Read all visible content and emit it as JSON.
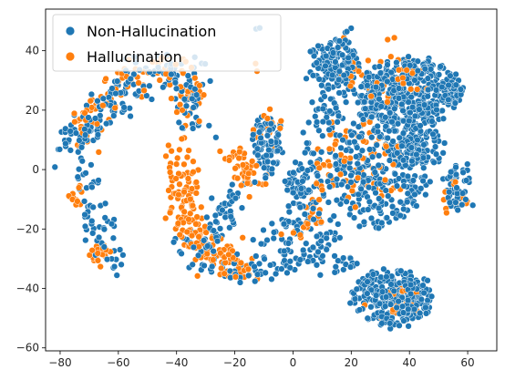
{
  "chart_data": {
    "type": "scatter",
    "title": "",
    "xlabel": "",
    "ylabel": "",
    "xlim": [
      -85,
      70
    ],
    "ylim": [
      -61,
      54
    ],
    "xticks": [
      -80,
      -60,
      -40,
      -20,
      0,
      20,
      40,
      60
    ],
    "yticks": [
      -60,
      -40,
      -20,
      0,
      20,
      40
    ],
    "grid": false,
    "legend": {
      "placement": "upper-left"
    },
    "series": [
      {
        "name": "Non-Hallucination",
        "color": "#1f77b4",
        "clusters": [
          {
            "shape": "arc",
            "points": [
              [
                -78,
                6
              ],
              [
                -75,
                9
              ],
              [
                -71,
                14
              ],
              [
                -66,
                18
              ],
              [
                -62,
                23
              ],
              [
                -58,
                28
              ],
              [
                -53,
                31
              ],
              [
                -47,
                32
              ],
              [
                -41,
                32
              ],
              [
                -35,
                28
              ],
              [
                -34,
                15
              ]
            ],
            "count": 180,
            "spread": 3.2
          },
          {
            "shape": "arc",
            "points": [
              [
                -72,
                2
              ],
              [
                -71,
                -8
              ],
              [
                -69,
                -16
              ],
              [
                -65,
                -20
              ],
              [
                -64,
                -28
              ],
              [
                -59,
                -32
              ]
            ],
            "count": 60,
            "spread": 2.4
          },
          {
            "shape": "arc",
            "points": [
              [
                -38,
                -22
              ],
              [
                -33,
                -29
              ],
              [
                -26,
                -32
              ],
              [
                -20,
                -34
              ],
              [
                -12,
                -34
              ],
              [
                -4,
                -32
              ],
              [
                2,
                -31
              ],
              [
                8,
                -29
              ],
              [
                12,
                -25
              ],
              [
                14,
                -19
              ]
            ],
            "count": 120,
            "spread": 2.4
          },
          {
            "shape": "arc",
            "points": [
              [
                -31,
                -26
              ],
              [
                -26,
                -20
              ],
              [
                -22,
                -12
              ],
              [
                -19,
                -6
              ]
            ],
            "count": 50,
            "spread": 2.4
          },
          {
            "shape": "arc",
            "points": [
              [
                -12,
                -22
              ],
              [
                -8,
                -24
              ],
              [
                -3,
                -22
              ],
              [
                2,
                -18
              ],
              [
                6,
                -10
              ],
              [
                8,
                0
              ],
              [
                10,
                10
              ],
              [
                12,
                18
              ],
              [
                14,
                24
              ],
              [
                12,
                30
              ]
            ],
            "count": 150,
            "spread": 3.4
          },
          {
            "shape": "blob",
            "center": [
              -9,
              8
            ],
            "radius": [
              4.5,
              11
            ],
            "count": 75
          },
          {
            "shape": "blob",
            "center": [
              2,
              -4
            ],
            "radius": [
              3.5,
              6
            ],
            "count": 35
          },
          {
            "shape": "blob",
            "center": [
              14,
              36
            ],
            "radius": [
              8,
              7
            ],
            "count": 120
          },
          {
            "shape": "blob",
            "center": [
              40,
              26
            ],
            "radius": [
              18,
              11
            ],
            "count": 420
          },
          {
            "shape": "blob",
            "center": [
              30,
              0
            ],
            "radius": [
              16,
              20
            ],
            "count": 300
          },
          {
            "shape": "blob",
            "center": [
              42,
              8
            ],
            "radius": [
              10,
              8
            ],
            "count": 90
          },
          {
            "shape": "blob",
            "center": [
              57,
              -6
            ],
            "radius": [
              5,
              8
            ],
            "count": 55
          },
          {
            "shape": "blob",
            "center": [
              34,
              -43
            ],
            "radius": [
              14,
              9
            ],
            "count": 260
          },
          {
            "shape": "blob",
            "center": [
              18,
              -32
            ],
            "radius": [
              4,
              3
            ],
            "count": 14
          },
          {
            "shape": "blob",
            "center": [
              -12,
              47
            ],
            "radius": [
              1,
              1
            ],
            "count": 2
          },
          {
            "shape": "blob",
            "center": [
              18,
              47
            ],
            "radius": [
              2,
              1
            ],
            "count": 3
          },
          {
            "shape": "blob",
            "center": [
              36,
              -53
            ],
            "radius": [
              2,
              1.5
            ],
            "count": 5
          }
        ]
      },
      {
        "name": "Hallucination",
        "color": "#ff7f0e",
        "clusters": [
          {
            "shape": "arc",
            "points": [
              [
                -73,
                8
              ],
              [
                -71,
                14
              ],
              [
                -69,
                22
              ],
              [
                -66,
                25
              ],
              [
                -62,
                27
              ],
              [
                -57,
                30
              ],
              [
                -51,
                32
              ],
              [
                -45,
                33
              ],
              [
                -39,
                33
              ],
              [
                -36,
                28
              ],
              [
                -36,
                22
              ],
              [
                -38,
                16
              ]
            ],
            "count": 110,
            "spread": 3
          },
          {
            "shape": "arc",
            "points": [
              [
                -37,
                8
              ],
              [
                -39,
                0
              ],
              [
                -38,
                -8
              ],
              [
                -37,
                -16
              ],
              [
                -35,
                -22
              ],
              [
                -31,
                -26
              ],
              [
                -26,
                -30
              ],
              [
                -20,
                -33
              ],
              [
                -14,
                -33
              ]
            ],
            "count": 180,
            "spread": 3.4
          },
          {
            "shape": "arc",
            "points": [
              [
                -22,
                8
              ],
              [
                -20,
                4
              ],
              [
                -16,
                -2
              ],
              [
                -14,
                -8
              ]
            ],
            "count": 45,
            "spread": 2.2
          },
          {
            "shape": "arc",
            "points": [
              [
                -2,
                -22
              ],
              [
                4,
                -18
              ],
              [
                8,
                -12
              ],
              [
                10,
                -4
              ],
              [
                12,
                4
              ],
              [
                14,
                10
              ]
            ],
            "count": 40,
            "spread": 3
          },
          {
            "shape": "blob",
            "center": [
              -66,
              -29
            ],
            "radius": [
              3,
              3
            ],
            "count": 18
          },
          {
            "shape": "blob",
            "center": [
              -74,
              -10
            ],
            "radius": [
              3,
              5
            ],
            "count": 12
          },
          {
            "shape": "blob",
            "center": [
              -8,
              14
            ],
            "radius": [
              4,
              8
            ],
            "count": 15
          },
          {
            "shape": "blob",
            "center": [
              32,
              30
            ],
            "radius": [
              14,
              9
            ],
            "count": 40
          },
          {
            "shape": "blob",
            "center": [
              25,
              2
            ],
            "radius": [
              14,
              14
            ],
            "count": 50
          },
          {
            "shape": "blob",
            "center": [
              35,
              -45
            ],
            "radius": [
              9,
              7
            ],
            "count": 22
          },
          {
            "shape": "blob",
            "center": [
              55,
              -10
            ],
            "radius": [
              4,
              6
            ],
            "count": 12
          },
          {
            "shape": "blob",
            "center": [
              -12,
              34
            ],
            "radius": [
              1,
              1
            ],
            "count": 2
          },
          {
            "shape": "blob",
            "center": [
              17,
              43
            ],
            "radius": [
              2,
              1
            ],
            "count": 3
          },
          {
            "shape": "blob",
            "center": [
              34,
              44
            ],
            "radius": [
              1,
              1
            ],
            "count": 2
          }
        ]
      }
    ]
  }
}
